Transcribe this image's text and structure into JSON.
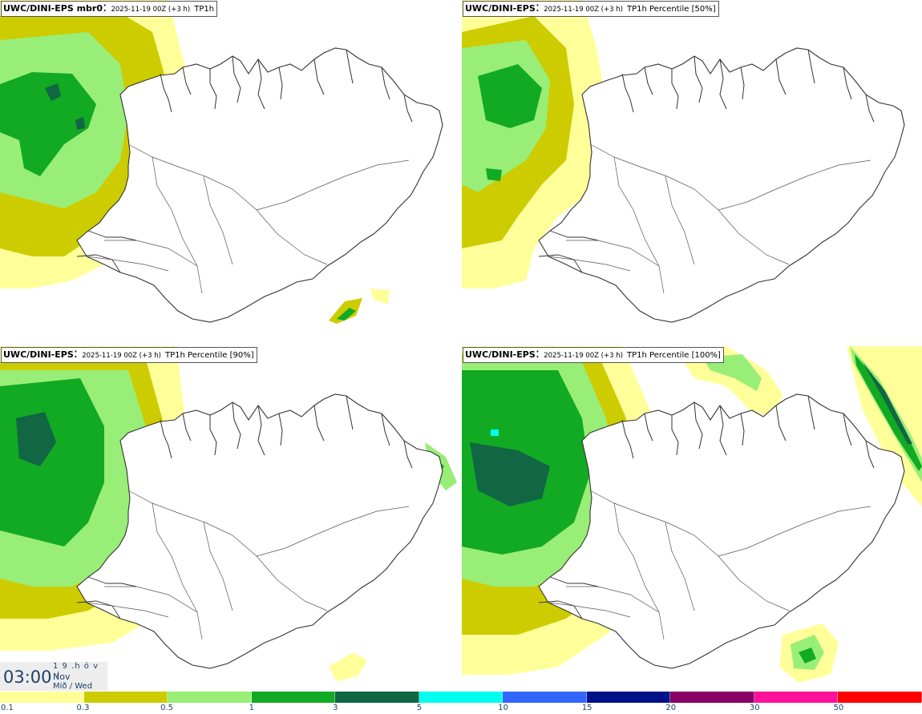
{
  "panels": [
    {
      "model": "UWC/DINI-EPS mbr0",
      "run": "2025-11-19 00Z (+3 h)",
      "param": "TP1h"
    },
    {
      "model": "UWC/DINI-EPS",
      "run": "2025-11-19 00Z (+3 h)",
      "param": "TP1h Percentile [50%]"
    },
    {
      "model": "UWC/DINI-EPS",
      "run": "2025-11-19 00Z (+3 h)",
      "param": "TP1h Percentile [90%]"
    },
    {
      "model": "UWC/DINI-EPS",
      "run": "2025-11-19 00Z (+3 h)",
      "param": "TP1h Percentile [100%]"
    }
  ],
  "time_box": {
    "clock": "03:00",
    "day": "1 9 .h ó v ./",
    "month": "Nov",
    "weekday": "Mið / Wed"
  },
  "legend": {
    "colors": [
      "#ffff99",
      "#cccc00",
      "#99ee77",
      "#11aa22",
      "#116644",
      "#00ffee",
      "#3366ff",
      "#001188",
      "#880066",
      "#ff1199",
      "#ff0000"
    ],
    "ticks": [
      "0.1",
      "0.3",
      "0.5",
      "1",
      "3",
      "5",
      "10",
      "15",
      "20",
      "30",
      "50"
    ]
  },
  "palette": {
    "light_yellow": "#ffff99",
    "olive": "#cccc00",
    "light_green": "#99ee77",
    "green": "#11aa22",
    "dark_green": "#116644",
    "cyan": "#00ffee",
    "coast": "#333333"
  }
}
